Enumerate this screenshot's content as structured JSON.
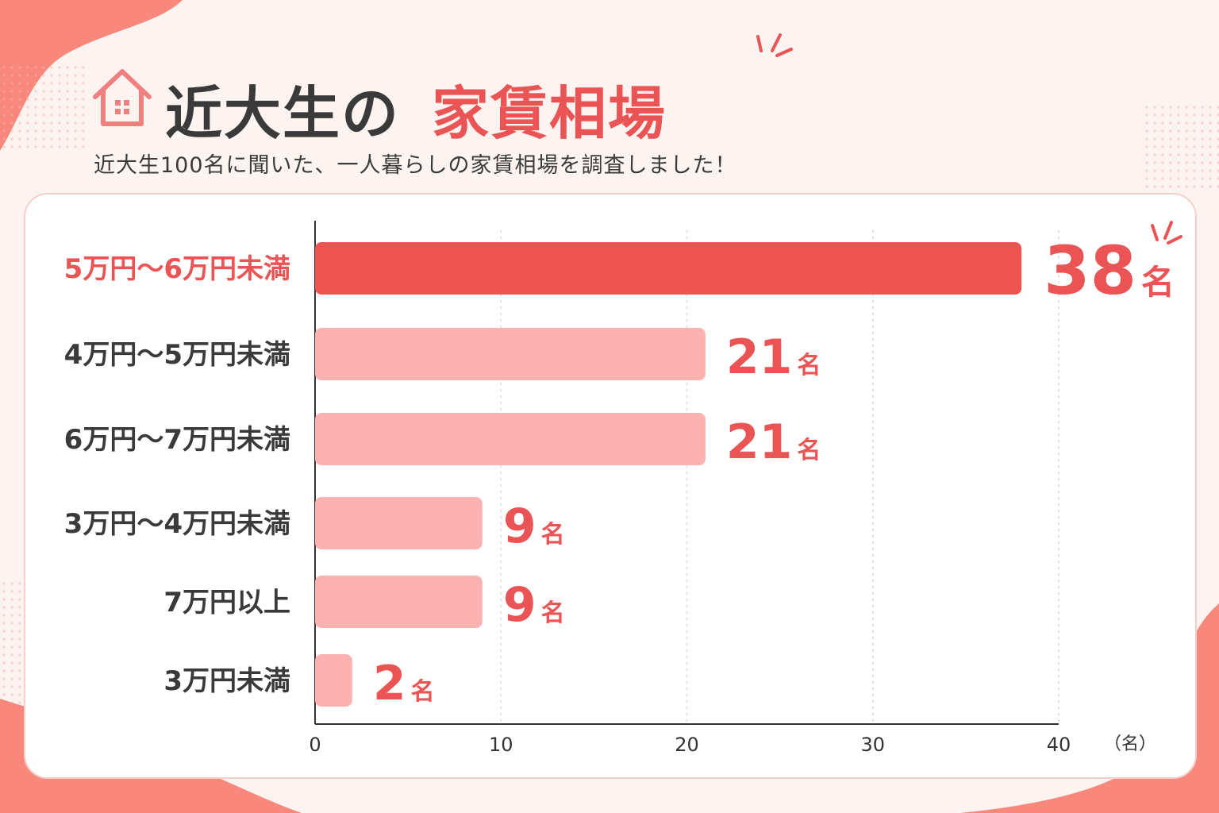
{
  "header": {
    "title_main": "近大生の",
    "title_accent": "家賃相場",
    "subtitle": "近大生100名に聞いた、一人暮らしの家賃相場を調査しました！"
  },
  "colors": {
    "accent": "#ea5454",
    "bar_highlight": "#ef5350",
    "bar_normal": "#fdb2b2",
    "text_dark": "#3a3a3a",
    "background": "#fdf4f1",
    "blob": "#f8877c"
  },
  "icons": [
    "house-icon",
    "sparkle-icon"
  ],
  "chart_data": {
    "type": "bar",
    "orientation": "horizontal",
    "categories": [
      "5万円～6万円未満",
      "4万円～5万円未満",
      "6万円～7万円未満",
      "3万円～4万円未満",
      "7万円以上",
      "3万円未満"
    ],
    "values": [
      38,
      21,
      21,
      9,
      9,
      2
    ],
    "value_labels": [
      "38",
      "21",
      "21",
      "9",
      "9",
      "2"
    ],
    "value_unit": "名",
    "highlight_index": 0,
    "xlim": [
      0,
      40
    ],
    "xticks": [
      "0",
      "10",
      "20",
      "30",
      "40"
    ],
    "xunit": "（名）",
    "grid": true
  }
}
